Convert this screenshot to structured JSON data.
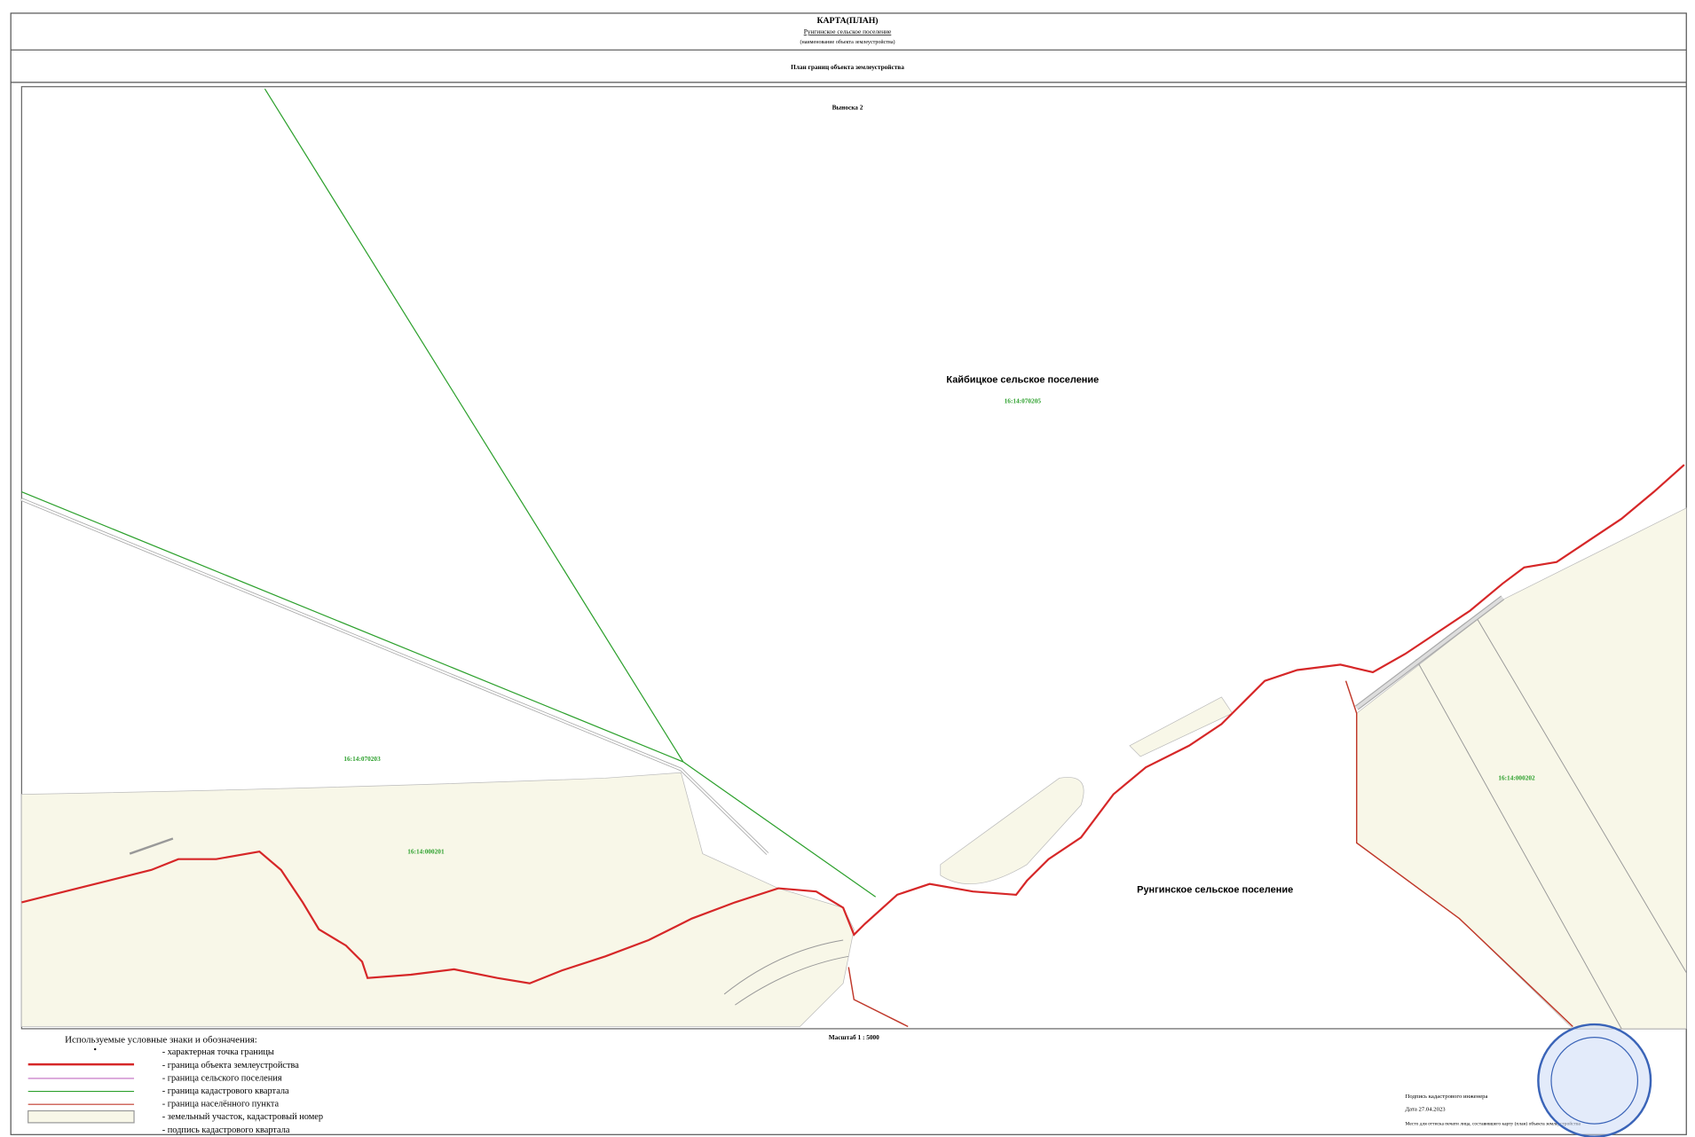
{
  "header": {
    "title": "КАРТА(ПЛАН)",
    "object_name": "Рунгинское сельское поселение",
    "object_caption": "(наименование объекта землеустройства)",
    "plan_title": "План границ объекта землеустройства"
  },
  "map": {
    "callout": "Выноска 2",
    "labels": [
      {
        "text": "Кайбицкое сельское поселение",
        "kind": "settlement"
      },
      {
        "text": "16:14:070205",
        "kind": "quarter"
      },
      {
        "text": "16:14:070203",
        "kind": "quarter"
      },
      {
        "text": "16:14:000201",
        "kind": "quarter"
      },
      {
        "text": "Рунгинское сельское поселение",
        "kind": "settlement"
      },
      {
        "text": "16:14:000202",
        "kind": "quarter"
      }
    ],
    "scale": "Масштаб  1 : 5000"
  },
  "legend": {
    "title": "Используемые условные знаки и обозначения:",
    "items": [
      "- характерная точка границы",
      "- граница объекта землеустройства",
      "- граница сельского поселения",
      "- граница кадастрового квартала",
      "- граница населённого пункта",
      "- земельный участок, кадастровый номер",
      "- подпись кадастрового квартала"
    ]
  },
  "footer": {
    "signature": "Подпись кадастрового инженера",
    "date": "Дата  27.04.2023",
    "stamp_note": "Место для оттиска печати лица, составившего карту (план) объекта землеустройства"
  }
}
